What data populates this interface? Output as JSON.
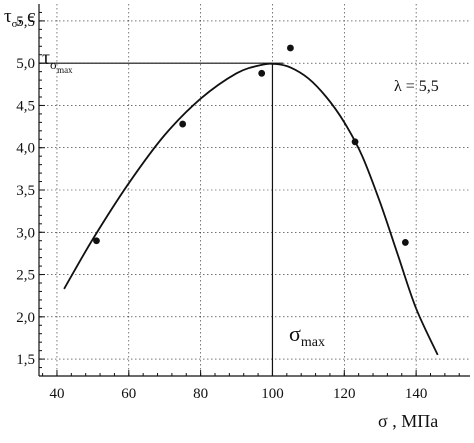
{
  "chart_data": {
    "type": "scatter",
    "xlabel": "σ , МПа",
    "ylabel": "τ",
    "ylabel_sub": "σ",
    "ylabel_suffix": ", с",
    "xlim": [
      35,
      155
    ],
    "ylim": [
      1.3,
      5.7
    ],
    "x_ticks": [
      {
        "value": 40,
        "label": "40"
      },
      {
        "value": 60,
        "label": "60"
      },
      {
        "value": 80,
        "label": "80"
      },
      {
        "value": 100,
        "label": "100"
      },
      {
        "value": 120,
        "label": "120"
      },
      {
        "value": 140,
        "label": "140"
      }
    ],
    "y_ticks": [
      {
        "value": 1.5,
        "label": "1,5"
      },
      {
        "value": 2.0,
        "label": "2,0"
      },
      {
        "value": 2.5,
        "label": "2,5"
      },
      {
        "value": 3.0,
        "label": "3,0"
      },
      {
        "value": 3.5,
        "label": "3,5"
      },
      {
        "value": 4.0,
        "label": "4,0"
      },
      {
        "value": 4.5,
        "label": "4,5"
      },
      {
        "value": 5.0,
        "label": "5,0"
      },
      {
        "value": 5.5,
        "label": "5,5"
      }
    ],
    "grid": true,
    "points": {
      "x": [
        51,
        75,
        97,
        105,
        123,
        137
      ],
      "y": [
        2.9,
        4.28,
        4.88,
        5.18,
        4.07,
        2.88
      ]
    },
    "fit_curve": {
      "x": [
        42,
        50,
        60,
        70,
        80,
        90,
        97,
        101,
        105,
        110,
        115,
        120,
        125,
        130,
        135,
        140,
        146
      ],
      "y": [
        2.33,
        2.92,
        3.58,
        4.15,
        4.58,
        4.88,
        4.98,
        4.99,
        4.95,
        4.82,
        4.6,
        4.3,
        3.9,
        3.35,
        2.72,
        2.1,
        1.55
      ]
    },
    "peak_line": {
      "x": 100,
      "y": 5.0
    },
    "annotations": {
      "tau_max_main": "τ",
      "tau_max_sub": "σ",
      "tau_max_subsub": "max",
      "sigma_max_main": "σ",
      "sigma_max_sub": "max",
      "lambda_label": "λ = 5,5"
    }
  }
}
